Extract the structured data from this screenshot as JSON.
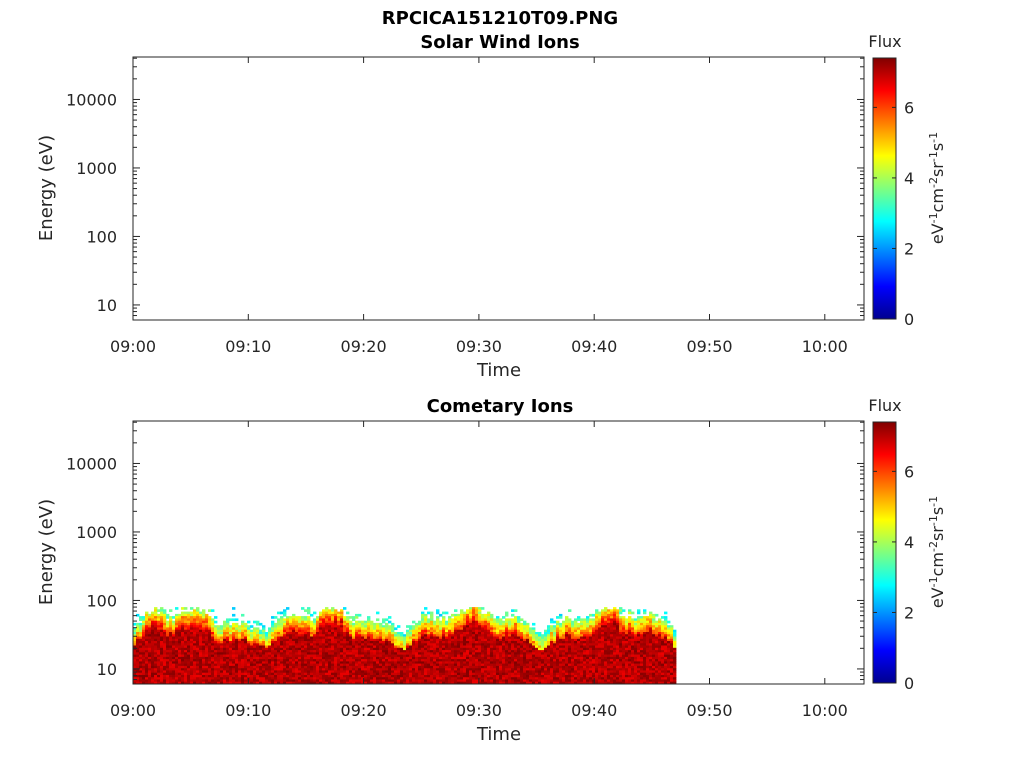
{
  "figure_title": "RPCICA151210T09.PNG",
  "chart_data": [
    {
      "type": "heatmap",
      "title": "Solar Wind Ions",
      "xlabel": "Time",
      "ylabel": "Energy (eV)",
      "yscale": "log",
      "x_ticks": [
        "09:00",
        "09:10",
        "09:20",
        "09:30",
        "09:40",
        "09:50",
        "10:00"
      ],
      "y_ticks": [
        "10",
        "100",
        "1000",
        "10000"
      ],
      "colorbar": {
        "title": "Flux",
        "label": "eV-1cm-2sr-1s-1",
        "ticks": [
          "0",
          "2",
          "4",
          "6"
        ],
        "range": [
          0,
          7.4
        ]
      },
      "data_present": false
    },
    {
      "type": "heatmap",
      "title": "Cometary Ions",
      "xlabel": "Time",
      "ylabel": "Energy (eV)",
      "yscale": "log",
      "x_ticks": [
        "09:00",
        "09:10",
        "09:20",
        "09:30",
        "09:40",
        "09:50",
        "10:00"
      ],
      "y_ticks": [
        "10",
        "100",
        "1000",
        "10000"
      ],
      "colorbar": {
        "title": "Flux",
        "label": "eV-1cm-2sr-1s-1",
        "ticks": [
          "0",
          "2",
          "4",
          "6"
        ],
        "range": [
          0,
          7.4
        ]
      },
      "data_present": true,
      "data_time_range": [
        "09:00",
        "09:47"
      ],
      "data_energy_range_eV": [
        6,
        80
      ],
      "peak_flux_energy_range_eV": [
        6,
        30
      ],
      "peak_flux_approx": 7
    }
  ]
}
